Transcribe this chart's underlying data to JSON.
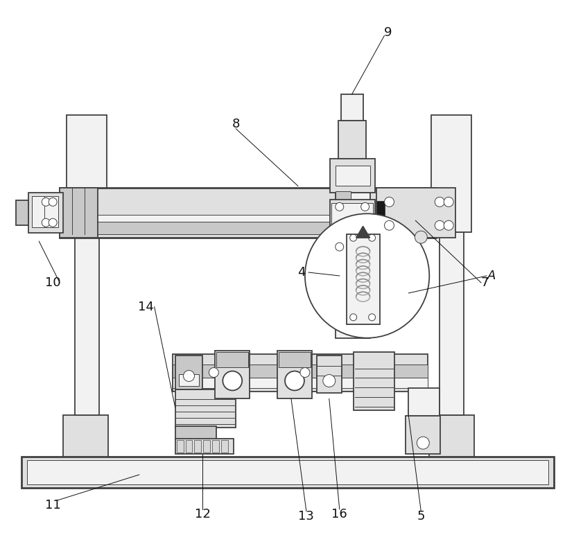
{
  "bg_color": "#ffffff",
  "line_color": "#404040",
  "fig_w": 8.29,
  "fig_h": 7.98,
  "dpi": 100,
  "lw_main": 1.3,
  "lw_thin": 0.7,
  "lw_thick": 2.0,
  "fc_light": "#f2f2f2",
  "fc_mid": "#e0e0e0",
  "fc_dark": "#c8c8c8",
  "label_fs": 13
}
